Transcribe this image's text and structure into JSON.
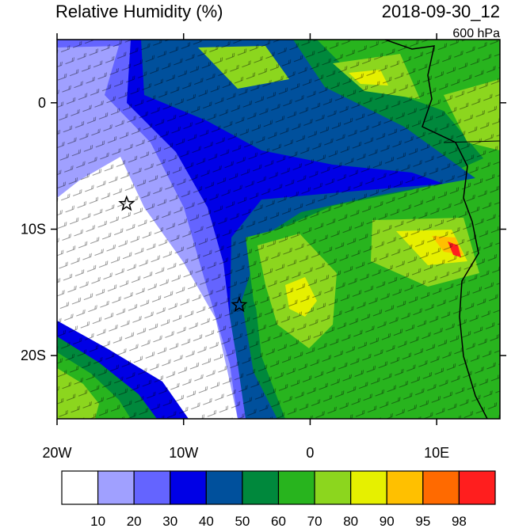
{
  "map": {
    "title": "Relative Humidity (%)",
    "time": "2018-09-30_12",
    "level": "600 hPa",
    "xlim": [
      -20,
      15
    ],
    "ylim": [
      -25,
      5
    ],
    "xticks": [
      {
        "value": -20,
        "label": "20W"
      },
      {
        "value": -10,
        "label": "10W"
      },
      0,
      {
        "value": 10,
        "label": "10E"
      }
    ],
    "yticks": [
      0,
      {
        "value": -10,
        "label": "10S"
      },
      {
        "value": -20,
        "label": "20S"
      }
    ],
    "markers": [
      {
        "lon": -14.5,
        "lat": -8
      },
      {
        "lon": -5.6,
        "lat": -16
      }
    ],
    "colorbar": {
      "levels": [
        10,
        20,
        30,
        40,
        50,
        60,
        70,
        80,
        90,
        95,
        98
      ],
      "colors": [
        "#ffffff",
        "#a0a0ff",
        "#6464ff",
        "#0000e6",
        "#00509c",
        "#00883c",
        "#28b41e",
        "#8cd61e",
        "#e6f000",
        "#ffc000",
        "#ff6a00",
        "#ff1e1e"
      ]
    }
  }
}
